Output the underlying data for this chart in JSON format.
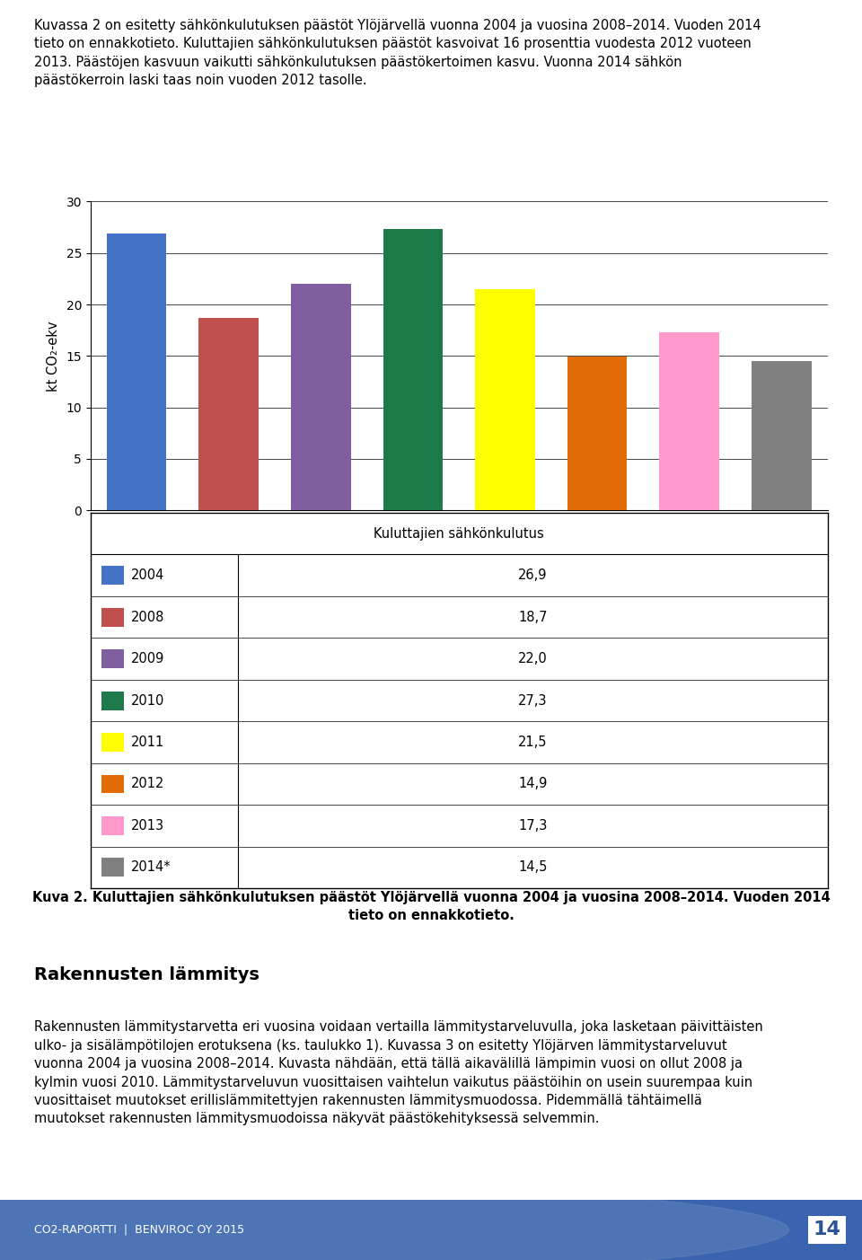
{
  "intro_text": "Kuvassa 2 on esitetty sähkönkulutuksen päästöt Ylöjärvellä vuonna 2004 ja vuosina 2008–2014. Vuoden 2014\ntieto on ennakkotieto. Kuluttajien sähkönkulutuksen päästöt kasvoivat 16 prosenttia vuodesta 2012 vuoteen\n2013. Päästöjen kasvuun vaikutti sähkönkulutuksen päästökertoimen kasvu. Vuonna 2014 sähkön\npäästökerroin laski taas noin vuoden 2012 tasolle.",
  "categories": [
    "2004",
    "2008",
    "2009",
    "2010",
    "2011",
    "2012",
    "2013",
    "2014*"
  ],
  "values": [
    26.9,
    18.7,
    22.0,
    27.3,
    21.5,
    14.9,
    17.3,
    14.5
  ],
  "bar_colors": [
    "#4472C4",
    "#C0504D",
    "#7F5F9F",
    "#1F7A4B",
    "#FFFF00",
    "#E36C09",
    "#FF99CC",
    "#808080"
  ],
  "ylabel": "kt CO₂-ekv",
  "xlabel_chart": "Kuluttajien sähkönkulutus",
  "ylim": [
    0,
    30
  ],
  "yticks": [
    0,
    5,
    10,
    15,
    20,
    25,
    30
  ],
  "legend_labels": [
    "2004",
    "2008",
    "2009",
    "2010",
    "2011",
    "2012",
    "2013",
    "2014*"
  ],
  "legend_values": [
    "26,9",
    "18,7",
    "22,0",
    "27,3",
    "21,5",
    "14,9",
    "17,3",
    "14,5"
  ],
  "legend_colors": [
    "#4472C4",
    "#C0504D",
    "#7F5F9F",
    "#1F7A4B",
    "#FFFF00",
    "#E36C09",
    "#FF99CC",
    "#808080"
  ],
  "caption_line1": "Kuva 2. Kuluttajien sähkönkulutuksen päästöt Ylöjärvellä vuonna 2004 ja vuosina 2008–2014. Vuoden 2014",
  "caption_line2": "tieto on ennakkotieto.",
  "section_title": "Rakennusten lämmitys",
  "body_text": "Rakennusten lämmitystarvetta eri vuosina voidaan vertailla lämmitystarveluvulla, joka lasketaan päivittäisten\nulko- ja sisälämpötilojen erotuksena (ks. taulukko 1). Kuvassa 3 on esitetty Ylöjärven lämmitystarveluvut\nvuonna 2004 ja vuosina 2008–2014. Kuvasta nähdään, että tällä aikavälillä lämpimin vuosi on ollut 2008 ja\nkylmin vuosi 2010. Lämmitystarveluvun vuosittaisen vaihtelun vaikutus päästöihin on usein suurempaa kuin\nvuosittaiset muutokset erillislämmitettyjen rakennusten lämmitysmuodossa. Pidemmällä tähtäimellä\nmuutokset rakennusten lämmitysmuodoissa näkyvät päästökehityksessä selvemmin.",
  "footer_text": "CO2-RAPORTTI  |  BENVIROC OY 2015",
  "page_number": "14",
  "footer_bg_color": "#2F5496",
  "footer_circle_color1": "#4472C4",
  "footer_circle_color2": "#6688BB",
  "background_color": "#FFFFFF"
}
